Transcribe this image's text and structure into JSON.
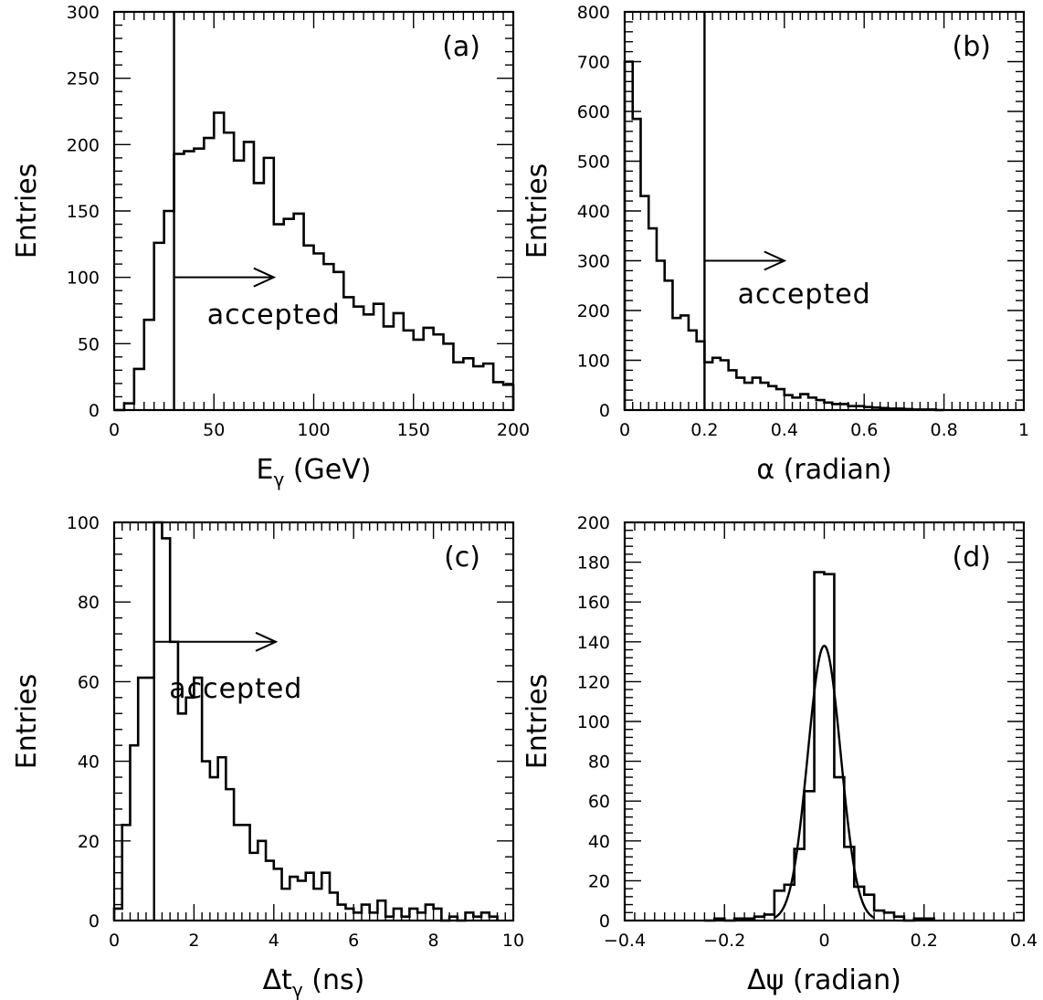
{
  "chart_data": [
    {
      "type": "histogram",
      "panel_label": "(a)",
      "xlabel": "E",
      "xlabel_sub": "γ",
      "xlabel_unit": " (GeV)",
      "ylabel": "Entries",
      "xlim": [
        0,
        200
      ],
      "ylim": [
        0,
        300
      ],
      "xticks": [
        0,
        50,
        100,
        150,
        200
      ],
      "xtick_labels": [
        "0",
        "50",
        "100",
        "150",
        "200"
      ],
      "yticks": [
        0,
        50,
        100,
        150,
        200,
        250,
        300
      ],
      "ytick_labels": [
        "0",
        "50",
        "100",
        "150",
        "200",
        "250",
        "300"
      ],
      "bin_edges": [
        0,
        5,
        10,
        15,
        20,
        25,
        30,
        35,
        40,
        45,
        50,
        55,
        60,
        65,
        70,
        75,
        80,
        85,
        90,
        95,
        100,
        105,
        110,
        115,
        120,
        125,
        130,
        135,
        140,
        145,
        150,
        155,
        160,
        165,
        170,
        175,
        180,
        185,
        190,
        195,
        200
      ],
      "counts": [
        0,
        5,
        31,
        68,
        126,
        150,
        193,
        195,
        197,
        205,
        224,
        209,
        188,
        202,
        171,
        190,
        140,
        144,
        148,
        124,
        118,
        110,
        104,
        85,
        78,
        72,
        80,
        63,
        73,
        60,
        53,
        62,
        57,
        50,
        36,
        39,
        33,
        35,
        21,
        19
      ],
      "cut_x": 30,
      "arrow": {
        "x0": 30,
        "x1": 80,
        "y": 100
      },
      "annotation": "accepted",
      "annotation_pos": {
        "x": 80,
        "y": 65
      }
    },
    {
      "type": "histogram",
      "panel_label": "(b)",
      "xlabel": "α",
      "xlabel_sub": "",
      "xlabel_unit": " (radian)",
      "ylabel": "Entries",
      "xlim": [
        0,
        1
      ],
      "ylim": [
        0,
        800
      ],
      "xticks": [
        0,
        0.2,
        0.4,
        0.6,
        0.8,
        1
      ],
      "xtick_labels": [
        "0",
        "0.2",
        "0.4",
        "0.6",
        "0.8",
        "1"
      ],
      "yticks": [
        0,
        100,
        200,
        300,
        400,
        500,
        600,
        700,
        800
      ],
      "ytick_labels": [
        "0",
        "100",
        "200",
        "300",
        "400",
        "500",
        "600",
        "700",
        "800"
      ],
      "bin_edges": [
        0,
        0.02,
        0.04,
        0.06,
        0.08,
        0.1,
        0.12,
        0.14,
        0.16,
        0.18,
        0.2,
        0.22,
        0.24,
        0.26,
        0.28,
        0.3,
        0.32,
        0.34,
        0.36,
        0.38,
        0.4,
        0.42,
        0.44,
        0.46,
        0.48,
        0.5,
        0.52,
        0.54,
        0.56,
        0.58,
        0.6,
        0.62,
        0.64,
        0.66,
        0.68,
        0.7,
        0.72,
        0.74,
        0.76,
        0.78,
        0.8
      ],
      "counts": [
        700,
        585,
        430,
        365,
        300,
        260,
        185,
        190,
        160,
        138,
        96,
        105,
        100,
        80,
        65,
        55,
        65,
        55,
        48,
        42,
        30,
        25,
        32,
        25,
        20,
        15,
        12,
        12,
        8,
        8,
        6,
        5,
        4,
        3,
        3,
        2,
        1,
        1,
        1,
        0
      ],
      "cut_x": 0.2,
      "arrow": {
        "x0": 0.2,
        "x1": 0.4,
        "y": 300
      },
      "annotation": "accepted",
      "annotation_pos": {
        "x": 0.45,
        "y": 215
      }
    },
    {
      "type": "histogram",
      "panel_label": "(c)",
      "xlabel": "Δt",
      "xlabel_sub": "γ",
      "xlabel_unit": " (ns)",
      "ylabel": "Entries",
      "xlim": [
        0,
        10
      ],
      "ylim": [
        0,
        100
      ],
      "xticks": [
        0,
        2,
        4,
        6,
        8,
        10
      ],
      "xtick_labels": [
        "0",
        "2",
        "4",
        "6",
        "8",
        "10"
      ],
      "yticks": [
        0,
        20,
        40,
        60,
        80,
        100
      ],
      "ytick_labels": [
        "0",
        "20",
        "40",
        "60",
        "80",
        "100"
      ],
      "bin_edges": [
        0,
        0.2,
        0.4,
        0.6,
        0.8,
        1.0,
        1.2,
        1.4,
        1.6,
        1.8,
        2.0,
        2.2,
        2.4,
        2.6,
        2.8,
        3.0,
        3.2,
        3.4,
        3.6,
        3.8,
        4.0,
        4.2,
        4.4,
        4.6,
        4.8,
        5.0,
        5.2,
        5.4,
        5.6,
        5.8,
        6.0,
        6.2,
        6.4,
        6.6,
        6.8,
        7.0,
        7.2,
        7.4,
        7.6,
        7.8,
        8.0,
        8.2,
        8.4,
        8.6,
        8.8,
        9.0,
        9.2,
        9.4,
        9.6
      ],
      "counts": [
        3,
        24,
        44,
        61,
        61,
        100,
        96,
        70,
        52,
        56,
        61,
        40,
        36,
        41,
        33,
        24,
        24,
        17,
        20,
        15,
        13,
        8,
        11,
        10,
        12,
        8,
        12,
        7,
        4,
        3,
        2,
        4,
        2,
        5,
        1,
        3,
        1,
        3,
        2,
        4,
        3,
        0,
        1,
        0,
        2,
        1,
        2,
        1
      ],
      "cut_x": 1.0,
      "arrow": {
        "x0": 1.0,
        "x1": 4.05,
        "y": 70
      },
      "annotation": "accepted",
      "annotation_pos": {
        "x": 3.05,
        "y": 56
      }
    },
    {
      "type": "histogram",
      "panel_label": "(d)",
      "xlabel": "Δψ",
      "xlabel_sub": "",
      "xlabel_unit": " (radian)",
      "ylabel": "Entries",
      "xlim": [
        -0.4,
        0.4
      ],
      "ylim": [
        0,
        200
      ],
      "xticks": [
        -0.4,
        -0.2,
        0,
        0.2,
        0.4
      ],
      "xtick_labels": [
        "−0.4",
        "−0.2",
        "0",
        "0.2",
        "0.4"
      ],
      "yticks": [
        0,
        20,
        40,
        60,
        80,
        100,
        120,
        140,
        160,
        180,
        200
      ],
      "ytick_labels": [
        "0",
        "20",
        "40",
        "60",
        "80",
        "100",
        "120",
        "140",
        "160",
        "180",
        "200"
      ],
      "bin_edges": [
        -0.24,
        -0.22,
        -0.2,
        -0.18,
        -0.16,
        -0.14,
        -0.12,
        -0.1,
        -0.08,
        -0.06,
        -0.04,
        -0.02,
        0,
        0.02,
        0.04,
        0.06,
        0.08,
        0.1,
        0.12,
        0.14,
        0.16,
        0.18,
        0.2,
        0.22
      ],
      "counts": [
        0,
        1,
        0,
        1,
        1,
        2,
        3,
        15,
        18,
        36,
        65,
        175,
        174,
        72,
        37,
        17,
        13,
        5,
        4,
        2,
        0,
        1,
        1
      ],
      "fit": {
        "type": "gaussian",
        "amplitude": 138,
        "mean": 0.0,
        "sigma": 0.033,
        "x_range": [
          -0.1,
          0.1
        ]
      }
    }
  ]
}
